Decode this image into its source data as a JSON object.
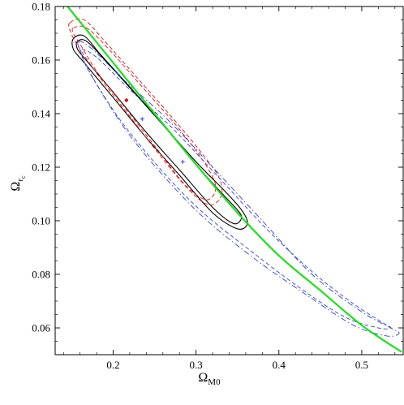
{
  "chart_data": {
    "type": "contour",
    "title": "",
    "xlabel_main": "Ω",
    "xlabel_sub": "M0",
    "ylabel_main": "Ω",
    "ylabel_sub": "r",
    "ylabel_subsub": "c",
    "xlim": [
      0.13,
      0.55
    ],
    "ylim": [
      0.05,
      0.18
    ],
    "x_ticks": [
      0.2,
      0.3,
      0.4,
      0.5
    ],
    "x_tick_labels": [
      "0.2",
      "0.3",
      "0.4",
      "0.5"
    ],
    "y_ticks": [
      0.06,
      0.08,
      0.1,
      0.12,
      0.14,
      0.16,
      0.18
    ],
    "y_tick_labels": [
      "0.06",
      "0.08",
      "0.10",
      "0.12",
      "0.14",
      "0.16",
      "0.18"
    ],
    "colors": {
      "black": "#000000",
      "red": "#dd1111",
      "blue": "#3344cc",
      "green": "#22dd22"
    },
    "flat_line": {
      "color": "green",
      "points": [
        [
          0.145,
          0.18
        ],
        [
          0.2,
          0.159
        ],
        [
          0.25,
          0.14
        ],
        [
          0.3,
          0.121
        ],
        [
          0.35,
          0.103
        ],
        [
          0.4,
          0.087
        ],
        [
          0.45,
          0.074
        ],
        [
          0.5,
          0.061
        ],
        [
          0.548,
          0.051
        ]
      ]
    },
    "contours": [
      {
        "color": "black",
        "style": "solid",
        "points": [
          [
            0.152,
            0.168
          ],
          [
            0.165,
            0.169
          ],
          [
            0.185,
            0.162
          ],
          [
            0.22,
            0.15
          ],
          [
            0.26,
            0.136
          ],
          [
            0.3,
            0.122
          ],
          [
            0.335,
            0.111
          ],
          [
            0.355,
            0.104
          ],
          [
            0.362,
            0.099
          ],
          [
            0.35,
            0.097
          ],
          [
            0.32,
            0.103
          ],
          [
            0.28,
            0.117
          ],
          [
            0.24,
            0.131
          ],
          [
            0.2,
            0.146
          ],
          [
            0.165,
            0.159
          ],
          [
            0.152,
            0.164
          ]
        ]
      },
      {
        "color": "black",
        "style": "solid",
        "points": [
          [
            0.157,
            0.167
          ],
          [
            0.168,
            0.167
          ],
          [
            0.19,
            0.16
          ],
          [
            0.225,
            0.148
          ],
          [
            0.265,
            0.134
          ],
          [
            0.3,
            0.121
          ],
          [
            0.332,
            0.11
          ],
          [
            0.35,
            0.104
          ],
          [
            0.355,
            0.101
          ],
          [
            0.345,
            0.099
          ],
          [
            0.32,
            0.105
          ],
          [
            0.28,
            0.119
          ],
          [
            0.24,
            0.133
          ],
          [
            0.2,
            0.148
          ],
          [
            0.17,
            0.159
          ],
          [
            0.157,
            0.164
          ]
        ]
      },
      {
        "color": "red",
        "style": "dashed",
        "points": [
          [
            0.148,
            0.174
          ],
          [
            0.165,
            0.175
          ],
          [
            0.19,
            0.167
          ],
          [
            0.23,
            0.153
          ],
          [
            0.27,
            0.139
          ],
          [
            0.305,
            0.126
          ],
          [
            0.328,
            0.116
          ],
          [
            0.33,
            0.109
          ],
          [
            0.315,
            0.106
          ],
          [
            0.29,
            0.112
          ],
          [
            0.255,
            0.125
          ],
          [
            0.22,
            0.139
          ],
          [
            0.185,
            0.153
          ],
          [
            0.158,
            0.165
          ],
          [
            0.148,
            0.171
          ]
        ]
      },
      {
        "color": "red",
        "style": "dashed",
        "points": [
          [
            0.152,
            0.172
          ],
          [
            0.168,
            0.172
          ],
          [
            0.195,
            0.164
          ],
          [
            0.235,
            0.15
          ],
          [
            0.275,
            0.136
          ],
          [
            0.305,
            0.124
          ],
          [
            0.322,
            0.115
          ],
          [
            0.322,
            0.11
          ],
          [
            0.31,
            0.108
          ],
          [
            0.285,
            0.114
          ],
          [
            0.25,
            0.128
          ],
          [
            0.215,
            0.142
          ],
          [
            0.182,
            0.155
          ],
          [
            0.16,
            0.166
          ],
          [
            0.152,
            0.17
          ]
        ]
      },
      {
        "color": "blue",
        "style": "dashdot",
        "points": [
          [
            0.158,
            0.167
          ],
          [
            0.175,
            0.164
          ],
          [
            0.215,
            0.152
          ],
          [
            0.265,
            0.138
          ],
          [
            0.32,
            0.12
          ],
          [
            0.38,
            0.1
          ],
          [
            0.44,
            0.08
          ],
          [
            0.5,
            0.066
          ],
          [
            0.535,
            0.06
          ],
          [
            0.545,
            0.058
          ],
          [
            0.53,
            0.057
          ],
          [
            0.49,
            0.061
          ],
          [
            0.43,
            0.073
          ],
          [
            0.37,
            0.086
          ],
          [
            0.31,
            0.101
          ],
          [
            0.26,
            0.117
          ],
          [
            0.215,
            0.134
          ],
          [
            0.18,
            0.151
          ],
          [
            0.162,
            0.162
          ]
        ]
      },
      {
        "color": "blue",
        "style": "dashed",
        "points": [
          [
            0.162,
            0.164
          ],
          [
            0.18,
            0.161
          ],
          [
            0.22,
            0.149
          ],
          [
            0.27,
            0.135
          ],
          [
            0.325,
            0.117
          ],
          [
            0.385,
            0.097
          ],
          [
            0.44,
            0.081
          ],
          [
            0.49,
            0.069
          ],
          [
            0.525,
            0.062
          ],
          [
            0.535,
            0.06
          ],
          [
            0.52,
            0.06
          ],
          [
            0.48,
            0.064
          ],
          [
            0.425,
            0.075
          ],
          [
            0.365,
            0.089
          ],
          [
            0.305,
            0.104
          ],
          [
            0.255,
            0.12
          ],
          [
            0.21,
            0.137
          ],
          [
            0.178,
            0.152
          ],
          [
            0.164,
            0.16
          ]
        ]
      }
    ],
    "best_fit_points": [
      {
        "color": "red",
        "x": 0.216,
        "y": 0.145
      },
      {
        "color": "blue",
        "x": 0.235,
        "y": 0.138
      },
      {
        "color": "blue",
        "x": 0.284,
        "y": 0.122
      }
    ]
  }
}
